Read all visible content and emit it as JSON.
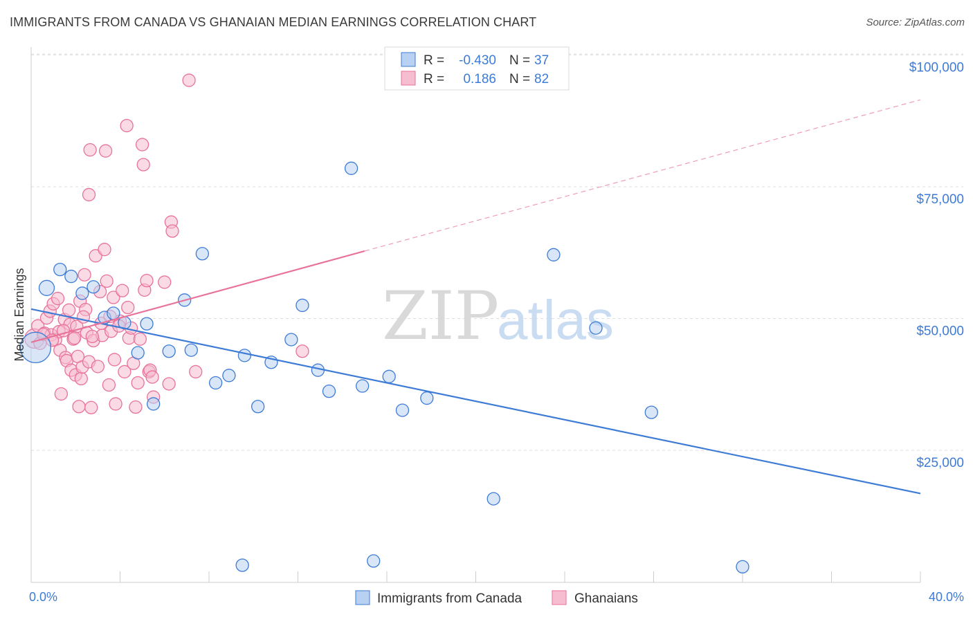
{
  "title": "IMMIGRANTS FROM CANADA VS GHANAIAN MEDIAN EARNINGS CORRELATION CHART",
  "source": "Source: ZipAtlas.com",
  "watermark": {
    "zip": "ZIP",
    "atlas": "atlas"
  },
  "colors": {
    "blue": "#3d7bd6",
    "blue_fill": "#b8d1f3",
    "pink": "#e8729a",
    "pink_fill": "#f6bcd0",
    "grid": "#dddddd"
  },
  "legend": {
    "rows": [
      {
        "r_label": "R =",
        "r_value": "-0.430",
        "n_label": "N =",
        "n_value": "37"
      },
      {
        "r_label": "R =",
        "r_value": "0.186",
        "n_label": "N =",
        "n_value": "82"
      }
    ]
  },
  "chart_data": {
    "type": "scatter",
    "ylabel": "Median Earnings",
    "xlabel": "",
    "xlim": [
      0,
      40
    ],
    "ylim": [
      0,
      105000
    ],
    "x_tick_labels": [
      "0.0%",
      "40.0%"
    ],
    "y_ticks": [
      {
        "value": 25000,
        "label": "$25,000"
      },
      {
        "value": 50000,
        "label": "$50,000"
      },
      {
        "value": 75000,
        "label": "$75,000"
      },
      {
        "value": 100000,
        "label": "$100,000"
      }
    ],
    "series": [
      {
        "name": "Immigrants from Canada",
        "color": "#3d7bd6",
        "trend": {
          "x0": 0,
          "y0": 51800,
          "x1": 40,
          "y1": 16800,
          "extended": false
        },
        "points": [
          [
            0.2,
            44500,
            22
          ],
          [
            0.7,
            55800,
            11
          ],
          [
            1.3,
            59300,
            9
          ],
          [
            1.8,
            58000,
            9
          ],
          [
            2.3,
            54800,
            9
          ],
          [
            2.8,
            56000,
            9
          ],
          [
            3.3,
            50200,
            9
          ],
          [
            3.7,
            51000,
            9
          ],
          [
            4.2,
            49200,
            9
          ],
          [
            4.8,
            43500,
            9
          ],
          [
            5.2,
            49000,
            9
          ],
          [
            5.5,
            33800,
            9
          ],
          [
            6.2,
            43800,
            9
          ],
          [
            6.9,
            53500,
            9
          ],
          [
            7.2,
            44000,
            9
          ],
          [
            7.7,
            62300,
            9
          ],
          [
            8.3,
            37800,
            9
          ],
          [
            8.9,
            39200,
            9
          ],
          [
            9.6,
            43000,
            9
          ],
          [
            10.2,
            33300,
            9
          ],
          [
            10.8,
            41700,
            9
          ],
          [
            11.7,
            46000,
            9
          ],
          [
            12.2,
            52500,
            9
          ],
          [
            12.9,
            40200,
            9
          ],
          [
            13.4,
            36200,
            9
          ],
          [
            14.4,
            78500,
            9
          ],
          [
            14.9,
            37200,
            9
          ],
          [
            16.1,
            39000,
            9
          ],
          [
            16.7,
            32600,
            9
          ],
          [
            17.8,
            34900,
            9
          ],
          [
            20.8,
            15800,
            9
          ],
          [
            23.5,
            62100,
            9
          ],
          [
            25.4,
            48200,
            9
          ],
          [
            27.9,
            32200,
            9
          ],
          [
            9.5,
            3200,
            9
          ],
          [
            15.4,
            4000,
            9
          ],
          [
            32.0,
            2900,
            9
          ]
        ]
      },
      {
        "name": "Ghanaians",
        "color": "#e8729a",
        "trend": {
          "x0": 0,
          "y0": 45500,
          "x1": 15,
          "y1": 62800,
          "x_ext": 40,
          "y_ext": 91500,
          "extended": true
        },
        "points": [
          [
            0.15,
            46200,
            14
          ],
          [
            0.3,
            48600,
            9
          ],
          [
            0.4,
            45300,
            9
          ],
          [
            0.6,
            47200,
            9
          ],
          [
            0.7,
            50100,
            9
          ],
          [
            0.85,
            51400,
            9
          ],
          [
            0.9,
            46900,
            9
          ],
          [
            1.0,
            52800,
            9
          ],
          [
            1.1,
            46000,
            9
          ],
          [
            1.2,
            53800,
            9
          ],
          [
            1.25,
            47500,
            9
          ],
          [
            1.3,
            44000,
            9
          ],
          [
            1.35,
            35700,
            9
          ],
          [
            1.5,
            49800,
            9
          ],
          [
            1.55,
            42600,
            9
          ],
          [
            1.6,
            42000,
            9
          ],
          [
            1.7,
            51600,
            9
          ],
          [
            1.75,
            48900,
            9
          ],
          [
            1.8,
            40200,
            9
          ],
          [
            1.9,
            46100,
            9
          ],
          [
            2.0,
            39300,
            9
          ],
          [
            2.05,
            48500,
            9
          ],
          [
            2.1,
            42800,
            9
          ],
          [
            2.15,
            33300,
            9
          ],
          [
            2.2,
            53300,
            9
          ],
          [
            2.25,
            38600,
            9
          ],
          [
            2.3,
            40800,
            9
          ],
          [
            2.4,
            58300,
            9
          ],
          [
            2.45,
            51700,
            9
          ],
          [
            2.5,
            47300,
            9
          ],
          [
            2.6,
            41800,
            9
          ],
          [
            2.6,
            73500,
            9
          ],
          [
            2.65,
            82000,
            9
          ],
          [
            2.7,
            33100,
            9
          ],
          [
            2.8,
            45800,
            9
          ],
          [
            2.9,
            61900,
            9
          ],
          [
            3.0,
            40900,
            9
          ],
          [
            3.1,
            55100,
            9
          ],
          [
            3.2,
            46800,
            9
          ],
          [
            3.3,
            63100,
            9
          ],
          [
            3.35,
            81800,
            9
          ],
          [
            3.4,
            57100,
            9
          ],
          [
            3.5,
            37400,
            9
          ],
          [
            3.6,
            47600,
            9
          ],
          [
            3.7,
            54000,
            9
          ],
          [
            3.75,
            42200,
            9
          ],
          [
            3.8,
            33800,
            9
          ],
          [
            4.0,
            49500,
            9
          ],
          [
            4.1,
            55300,
            9
          ],
          [
            4.2,
            39900,
            9
          ],
          [
            4.3,
            86600,
            9
          ],
          [
            4.4,
            46300,
            9
          ],
          [
            4.5,
            48200,
            9
          ],
          [
            4.6,
            41500,
            9
          ],
          [
            4.7,
            33200,
            9
          ],
          [
            4.8,
            37800,
            9
          ],
          [
            4.9,
            46100,
            9
          ],
          [
            5.0,
            83000,
            9
          ],
          [
            5.05,
            79200,
            9
          ],
          [
            5.1,
            55400,
            9
          ],
          [
            5.2,
            57200,
            9
          ],
          [
            5.3,
            39900,
            9
          ],
          [
            5.35,
            40200,
            9
          ],
          [
            5.45,
            38900,
            9
          ],
          [
            5.5,
            35100,
            9
          ],
          [
            6.0,
            56900,
            9
          ],
          [
            6.2,
            37600,
            9
          ],
          [
            6.3,
            68300,
            9
          ],
          [
            6.35,
            66600,
            9
          ],
          [
            7.1,
            95200,
            9
          ],
          [
            7.4,
            39900,
            9
          ],
          [
            12.2,
            43800,
            9
          ],
          [
            0.55,
            47000,
            9
          ],
          [
            0.95,
            45900,
            9
          ],
          [
            1.45,
            47700,
            9
          ],
          [
            1.95,
            46300,
            9
          ],
          [
            2.35,
            50300,
            9
          ],
          [
            2.75,
            46600,
            9
          ],
          [
            3.15,
            49100,
            9
          ],
          [
            3.55,
            50400,
            9
          ],
          [
            3.95,
            48600,
            9
          ],
          [
            4.35,
            52100,
            9
          ]
        ]
      }
    ]
  },
  "bottom_legend": {
    "items": [
      {
        "label": "Immigrants from Canada"
      },
      {
        "label": "Ghanaians"
      }
    ]
  }
}
